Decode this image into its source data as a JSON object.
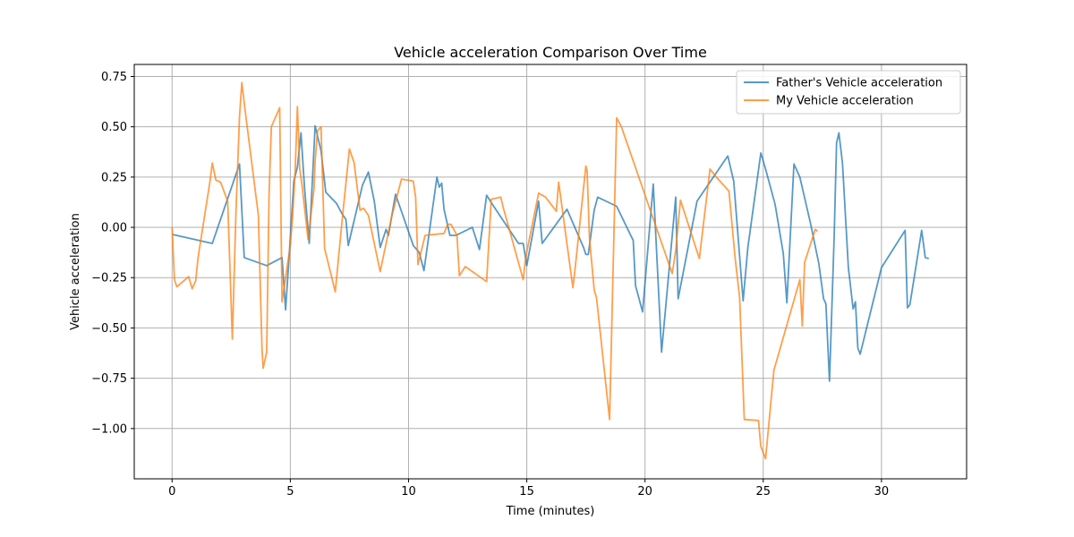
{
  "chart_data": {
    "type": "line",
    "title": "Vehicle acceleration Comparison Over Time",
    "xlabel": "Time (minutes)",
    "ylabel": "Vehicle acceleration",
    "xlim": [
      -1.6,
      33.6
    ],
    "ylim": [
      -1.25,
      0.81
    ],
    "xticks": [
      0,
      5,
      10,
      15,
      20,
      25,
      30
    ],
    "yticks": [
      -1.0,
      -0.75,
      -0.5,
      -0.25,
      0.0,
      0.25,
      0.5,
      0.75
    ],
    "ytick_labels": [
      "−1.00",
      "−0.75",
      "−0.50",
      "−0.25",
      "0.00",
      "0.25",
      "0.50",
      "0.75"
    ],
    "grid": true,
    "legend_position": "top-right",
    "series": [
      {
        "name": "Father's Vehicle acceleration",
        "color": "#1f77b4",
        "x": [
          0.0,
          1.7,
          2.85,
          3.05,
          4.0,
          4.65,
          4.8,
          5.0,
          5.15,
          5.3,
          5.45,
          5.6,
          5.8,
          6.05,
          6.3,
          6.5,
          6.95,
          7.2,
          7.35,
          7.45,
          8.05,
          8.3,
          8.55,
          8.8,
          9.05,
          9.15,
          9.45,
          10.2,
          10.45,
          10.65,
          11.2,
          11.3,
          11.4,
          11.5,
          11.75,
          12.0,
          12.7,
          13.0,
          13.3,
          13.6,
          14.65,
          14.85,
          15.0,
          15.5,
          15.65,
          16.7,
          17.4,
          17.5,
          17.6,
          17.85,
          18.0,
          18.8,
          19.5,
          19.6,
          19.9,
          20.35,
          20.7,
          21.3,
          21.4,
          22.2,
          22.6,
          23.5,
          23.75,
          24.15,
          24.35,
          24.9,
          25.1,
          25.5,
          25.85,
          26.0,
          26.3,
          26.55,
          27.0,
          27.35,
          27.55,
          27.65,
          27.8,
          28.0,
          28.1,
          28.2,
          28.35,
          28.6,
          28.8,
          28.9,
          29.0,
          29.1,
          30.0,
          31.0,
          31.1,
          31.2,
          31.7,
          31.85,
          32.0
        ],
        "y": [
          -0.035,
          -0.08,
          0.315,
          -0.15,
          -0.19,
          -0.15,
          -0.41,
          -0.05,
          0.23,
          0.3,
          0.47,
          0.2,
          -0.08,
          0.505,
          0.38,
          0.175,
          0.12,
          0.065,
          0.04,
          -0.09,
          0.21,
          0.275,
          0.13,
          -0.1,
          -0.01,
          -0.04,
          0.165,
          -0.09,
          -0.125,
          -0.215,
          0.25,
          0.2,
          0.22,
          0.09,
          -0.04,
          -0.04,
          0.0,
          -0.11,
          0.16,
          0.105,
          -0.08,
          -0.08,
          -0.19,
          0.13,
          -0.08,
          0.09,
          -0.1,
          -0.135,
          -0.135,
          0.085,
          0.15,
          0.105,
          -0.065,
          -0.29,
          -0.42,
          0.215,
          -0.62,
          0.15,
          -0.355,
          0.13,
          0.2,
          0.355,
          0.23,
          -0.365,
          -0.1,
          0.37,
          0.29,
          0.115,
          -0.13,
          -0.375,
          0.315,
          0.25,
          0.02,
          -0.18,
          -0.355,
          -0.38,
          -0.765,
          -0.05,
          0.42,
          0.47,
          0.32,
          -0.2,
          -0.405,
          -0.37,
          -0.6,
          -0.63,
          -0.2,
          -0.015,
          -0.4,
          -0.385,
          -0.015,
          -0.15,
          -0.155
        ]
      },
      {
        "name": "My Vehicle acceleration",
        "color": "#ff7f0e",
        "x": [
          0.0,
          0.1,
          0.2,
          0.7,
          0.85,
          1.0,
          1.1,
          1.6,
          1.7,
          1.85,
          2.05,
          2.35,
          2.55,
          2.7,
          2.85,
          2.95,
          3.1,
          3.65,
          3.8,
          3.85,
          4.0,
          4.1,
          4.2,
          4.55,
          4.65,
          5.0,
          5.1,
          5.2,
          5.3,
          5.4,
          5.5,
          5.75,
          6.0,
          6.05,
          6.15,
          6.3,
          6.45,
          6.9,
          7.2,
          7.5,
          7.7,
          7.95,
          8.1,
          8.3,
          8.8,
          9.3,
          9.7,
          10.2,
          10.3,
          10.4,
          10.7,
          11.5,
          11.65,
          11.8,
          12.05,
          12.15,
          12.4,
          13.3,
          13.5,
          13.9,
          14.0,
          14.85,
          14.95,
          15.5,
          15.8,
          16.25,
          16.35,
          16.95,
          17.05,
          17.5,
          17.55,
          17.65,
          17.85,
          17.95,
          18.5,
          18.8,
          19.0,
          21.15,
          21.3,
          21.5,
          22.3,
          22.75,
          23.05,
          23.55,
          23.8,
          24.0,
          24.2,
          24.8,
          24.9,
          25.1,
          25.45,
          26.55,
          26.65,
          26.75,
          27.2,
          27.3
        ],
        "y": [
          0.0,
          -0.26,
          -0.295,
          -0.245,
          -0.305,
          -0.265,
          -0.15,
          0.225,
          0.32,
          0.235,
          0.225,
          0.13,
          -0.555,
          0.07,
          0.55,
          0.72,
          0.57,
          0.06,
          -0.6,
          -0.7,
          -0.62,
          0.16,
          0.5,
          0.595,
          -0.37,
          -0.09,
          0.06,
          0.27,
          0.6,
          0.29,
          0.205,
          -0.06,
          0.19,
          0.33,
          0.48,
          0.5,
          -0.105,
          -0.32,
          0.045,
          0.39,
          0.32,
          0.085,
          0.095,
          0.06,
          -0.22,
          0.06,
          0.24,
          0.23,
          0.15,
          -0.185,
          -0.04,
          -0.03,
          0.015,
          0.015,
          -0.04,
          -0.24,
          -0.195,
          -0.27,
          0.14,
          0.15,
          0.1,
          -0.26,
          -0.15,
          0.17,
          0.15,
          0.08,
          0.225,
          -0.3,
          -0.2,
          0.305,
          0.28,
          -0.05,
          -0.31,
          -0.35,
          -0.955,
          0.545,
          0.5,
          -0.23,
          -0.115,
          0.135,
          -0.155,
          0.29,
          0.245,
          0.18,
          -0.14,
          -0.35,
          -0.955,
          -0.96,
          -1.09,
          -1.15,
          -0.71,
          -0.26,
          -0.49,
          -0.175,
          -0.01,
          -0.02
        ]
      }
    ]
  }
}
